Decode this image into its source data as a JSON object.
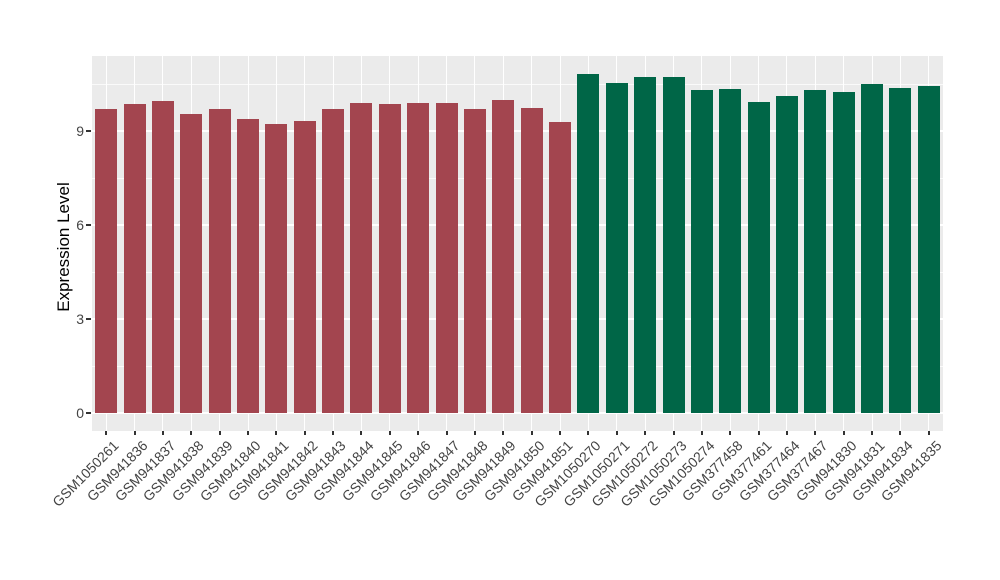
{
  "chart_data": {
    "type": "bar",
    "title": "",
    "xlabel": "",
    "ylabel": "Expression Level",
    "ylim": [
      0,
      11.4
    ],
    "yticks": [
      0,
      3,
      6,
      9
    ],
    "yticks_minor": [
      1.5,
      4.5,
      7.5,
      10.5
    ],
    "grid": "on",
    "legend": "none",
    "panel_background": "#EBEBEB",
    "gridline_color": "#FFFFFF",
    "tick_color": "#333333",
    "axis_text_color": "#444444",
    "groups": [
      {
        "name": "group-1",
        "color": "#A3454F"
      },
      {
        "name": "group-2",
        "color": "#006647"
      }
    ],
    "bars": [
      {
        "label": "GSM1050261",
        "value": 9.7,
        "group": 0
      },
      {
        "label": "GSM941836",
        "value": 9.86,
        "group": 0
      },
      {
        "label": "GSM941837",
        "value": 9.97,
        "group": 0
      },
      {
        "label": "GSM941838",
        "value": 9.54,
        "group": 0
      },
      {
        "label": "GSM941839",
        "value": 9.7,
        "group": 0
      },
      {
        "label": "GSM941840",
        "value": 9.38,
        "group": 0
      },
      {
        "label": "GSM941841",
        "value": 9.22,
        "group": 0
      },
      {
        "label": "GSM941842",
        "value": 9.32,
        "group": 0
      },
      {
        "label": "GSM941843",
        "value": 9.7,
        "group": 0
      },
      {
        "label": "GSM941844",
        "value": 9.89,
        "group": 0
      },
      {
        "label": "GSM941845",
        "value": 9.86,
        "group": 0
      },
      {
        "label": "GSM941846",
        "value": 9.89,
        "group": 0
      },
      {
        "label": "GSM941847",
        "value": 9.89,
        "group": 0
      },
      {
        "label": "GSM941848",
        "value": 9.7,
        "group": 0
      },
      {
        "label": "GSM941849",
        "value": 9.99,
        "group": 0
      },
      {
        "label": "GSM941850",
        "value": 9.73,
        "group": 0
      },
      {
        "label": "GSM941851",
        "value": 9.29,
        "group": 0
      },
      {
        "label": "GSM1050270",
        "value": 10.82,
        "group": 1
      },
      {
        "label": "GSM1050271",
        "value": 10.53,
        "group": 1
      },
      {
        "label": "GSM1050272",
        "value": 10.72,
        "group": 1
      },
      {
        "label": "GSM1050273",
        "value": 10.72,
        "group": 1
      },
      {
        "label": "GSM1050274",
        "value": 10.31,
        "group": 1
      },
      {
        "label": "GSM377458",
        "value": 10.34,
        "group": 1
      },
      {
        "label": "GSM377461",
        "value": 9.93,
        "group": 1
      },
      {
        "label": "GSM377464",
        "value": 10.12,
        "group": 1
      },
      {
        "label": "GSM377467",
        "value": 10.31,
        "group": 1
      },
      {
        "label": "GSM941830",
        "value": 10.25,
        "group": 1
      },
      {
        "label": "GSM941831",
        "value": 10.5,
        "group": 1
      },
      {
        "label": "GSM941834",
        "value": 10.37,
        "group": 1
      },
      {
        "label": "GSM941835",
        "value": 10.44,
        "group": 1
      }
    ]
  }
}
